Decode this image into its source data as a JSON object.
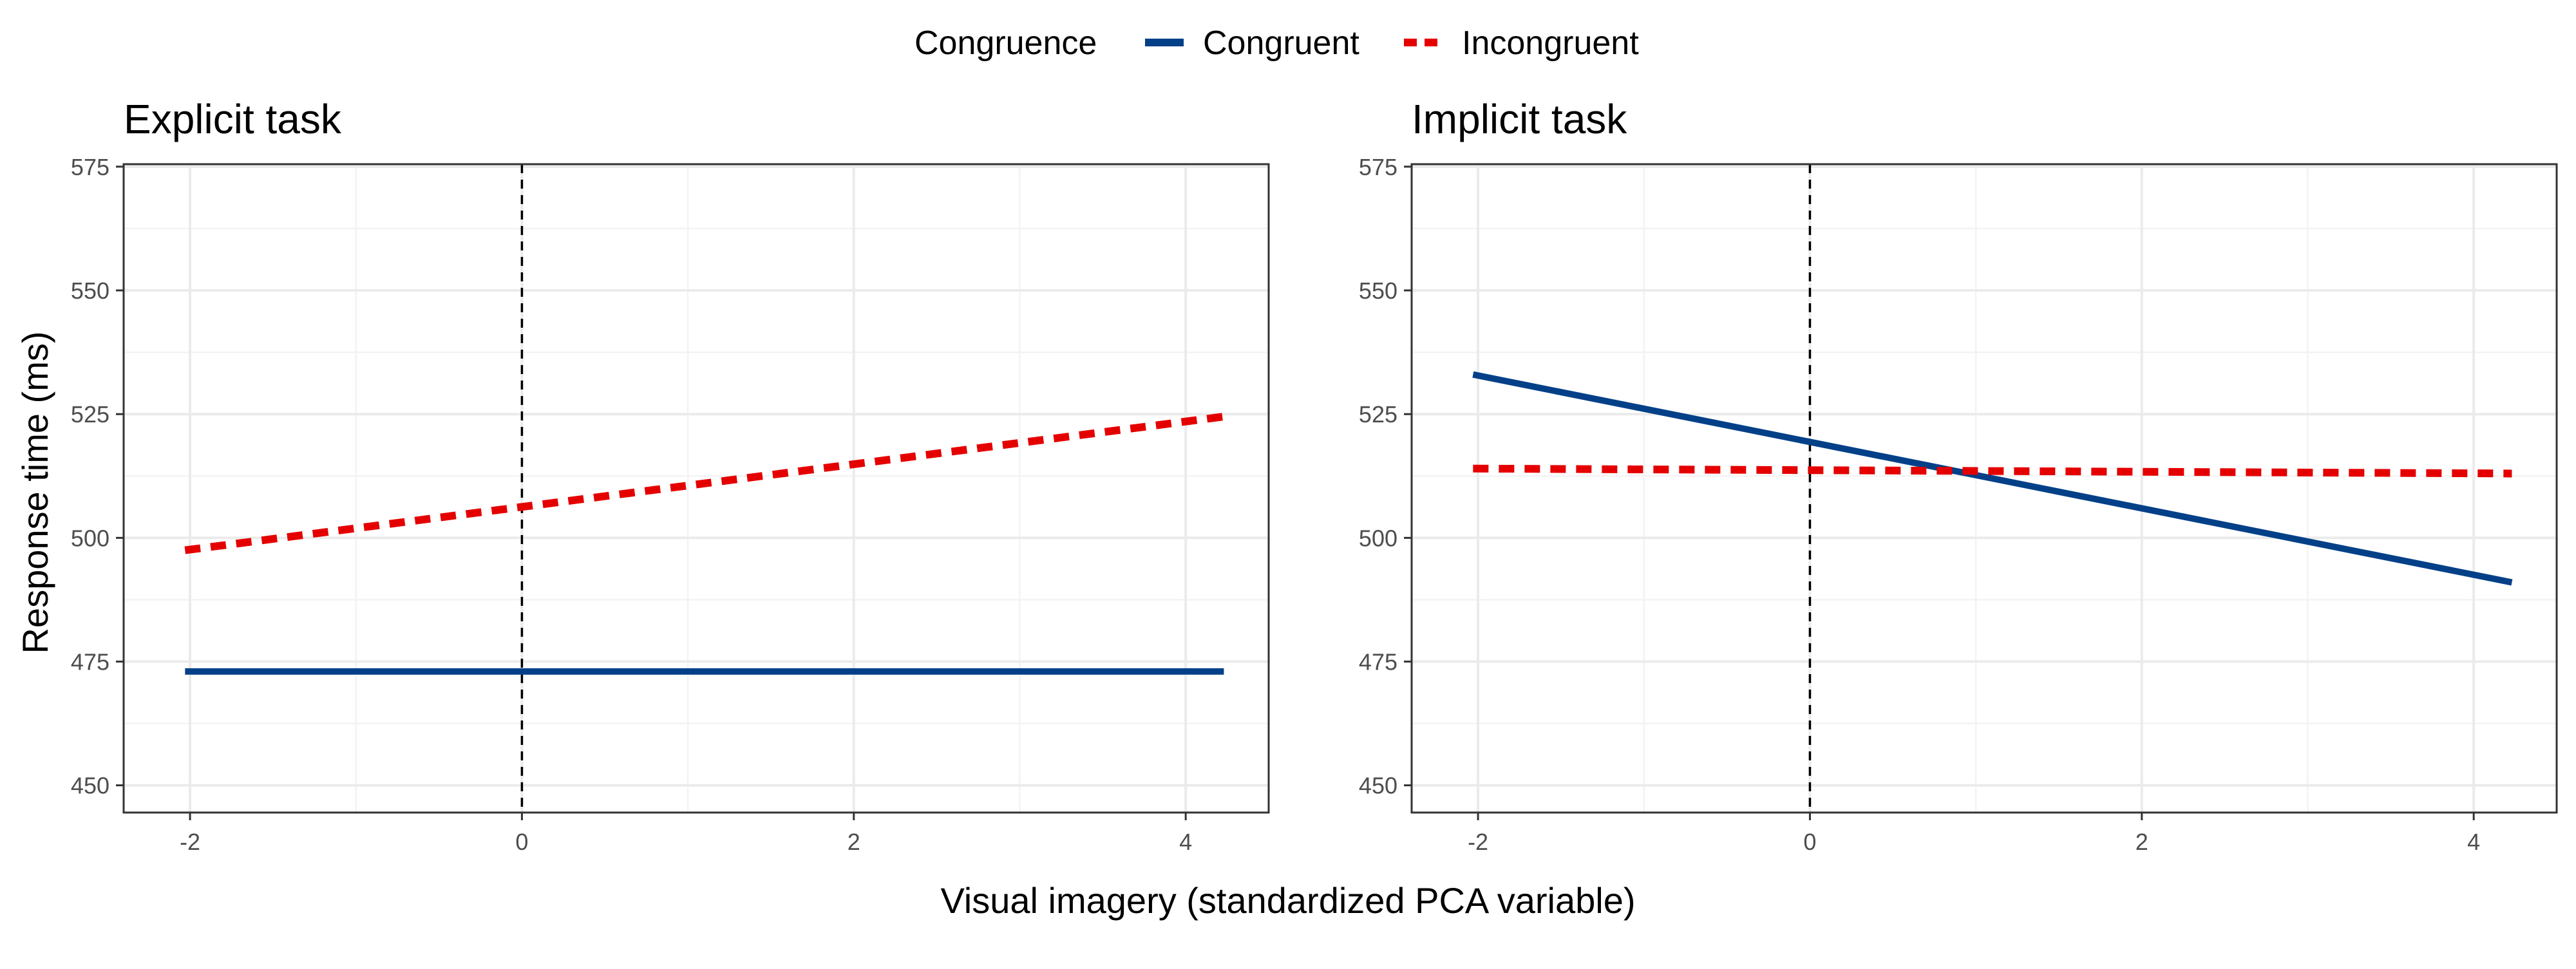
{
  "legend": {
    "title": "Congruence",
    "items": [
      {
        "label": "Congruent",
        "color": "#034088",
        "dash": "solid"
      },
      {
        "label": "Incongruent",
        "color": "#e50000",
        "dash": "dashed"
      }
    ]
  },
  "axes": {
    "xlabel": "Visual imagery (standardized PCA variable)",
    "ylabel": "Response time (ms)",
    "x_ticks": [
      -2,
      0,
      2,
      4
    ],
    "x_tick_labels": [
      "-2",
      "0",
      "2",
      "4"
    ],
    "y_ticks": [
      450,
      475,
      500,
      525,
      550,
      575
    ],
    "y_tick_labels": [
      "450",
      "475",
      "500",
      "525",
      "550",
      "575"
    ]
  },
  "chart_data": [
    {
      "type": "line",
      "title": "Explicit task",
      "xlabel": "Visual imagery (standardized PCA variable)",
      "ylabel": "Response time (ms)",
      "xlim": [
        -2.4,
        4.5
      ],
      "ylim": [
        444.5,
        575.5
      ],
      "grid": true,
      "reference_line": {
        "x": 0,
        "style": "dashed"
      },
      "series": [
        {
          "name": "Congruent",
          "x": [
            -2.03,
            4.23
          ],
          "y": [
            473.0,
            473.0
          ]
        },
        {
          "name": "Incongruent",
          "x": [
            -2.03,
            4.23
          ],
          "y": [
            497.5,
            524.5
          ]
        }
      ]
    },
    {
      "type": "line",
      "title": "Implicit task",
      "xlabel": "Visual imagery (standardized PCA variable)",
      "ylabel": "Response time (ms)",
      "xlim": [
        -2.4,
        4.5
      ],
      "ylim": [
        444.5,
        575.5
      ],
      "grid": true,
      "reference_line": {
        "x": 0,
        "style": "dashed"
      },
      "series": [
        {
          "name": "Congruent",
          "x": [
            -2.03,
            4.23
          ],
          "y": [
            533.0,
            491.0
          ]
        },
        {
          "name": "Incongruent",
          "x": [
            -2.03,
            4.23
          ],
          "y": [
            514.0,
            513.0
          ]
        }
      ]
    }
  ]
}
